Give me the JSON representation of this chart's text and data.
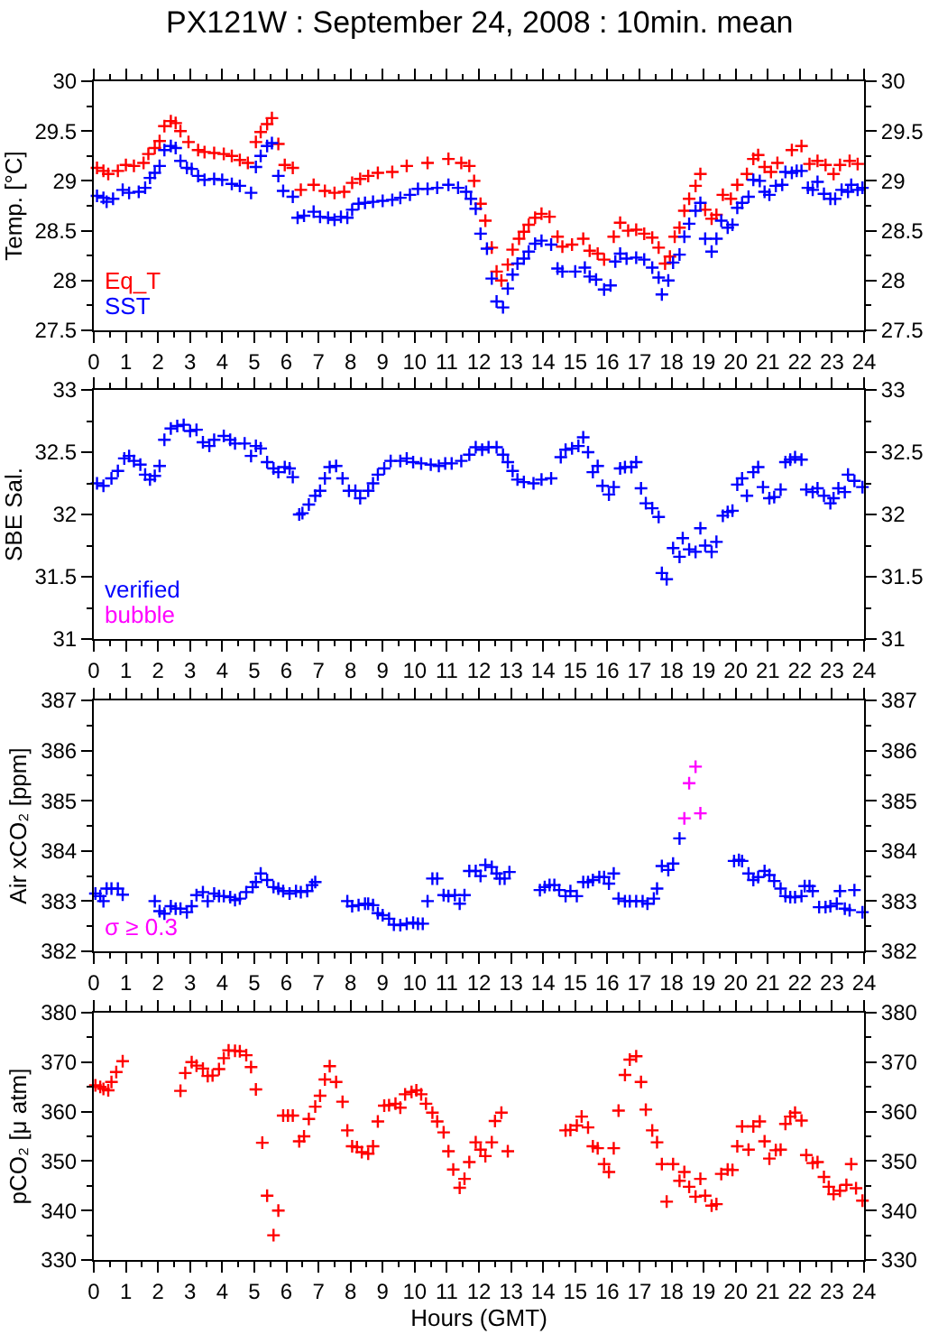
{
  "chart_data": [
    {
      "type": "scatter",
      "title": "PX121W : September 24, 2008 : 10min. mean",
      "ylabel": "Temp. [°C]",
      "marker": "cross",
      "legend": "bottom left",
      "xlim": [
        0,
        24
      ],
      "xticks": [
        0,
        1,
        2,
        3,
        4,
        5,
        6,
        7,
        8,
        9,
        10,
        11,
        12,
        13,
        14,
        15,
        16,
        17,
        18,
        19,
        20,
        21,
        22,
        23,
        24
      ],
      "ylim": [
        27.5,
        30
      ],
      "yticks": [
        27.5,
        28,
        28.5,
        29,
        29.5,
        30
      ],
      "y2lim": [
        27.5,
        30
      ],
      "y2ticks": [
        27.5,
        28,
        28.5,
        29,
        29.5,
        30
      ],
      "series": [
        {
          "name": "Eq_T",
          "color": "#ff0000",
          "x": [
            0.1,
            0.3,
            0.45,
            0.75,
            1.0,
            1.25,
            1.55,
            1.7,
            1.9,
            2.05,
            2.2,
            2.4,
            2.55,
            2.7,
            2.95,
            3.25,
            3.45,
            3.75,
            4.05,
            4.3,
            4.55,
            4.8,
            5.05,
            5.2,
            5.4,
            5.55,
            5.75,
            5.95,
            6.2,
            6.45,
            6.85,
            7.2,
            7.5,
            7.8,
            8.05,
            8.3,
            8.55,
            8.85,
            9.3,
            9.75,
            10.4,
            11.05,
            11.45,
            11.7,
            11.85,
            12.05,
            12.2,
            12.4,
            12.55,
            12.7,
            12.9,
            13.05,
            13.25,
            13.4,
            13.55,
            13.75,
            13.95,
            14.2,
            14.45,
            14.6,
            14.9,
            15.25,
            15.45,
            15.7,
            15.9,
            16.2,
            16.4,
            16.65,
            16.9,
            17.15,
            17.4,
            17.6,
            17.8,
            17.95,
            18.1,
            18.25,
            18.4,
            18.55,
            18.75,
            18.9,
            19.05,
            19.25,
            19.4,
            19.6,
            19.85,
            20.05,
            20.35,
            20.55,
            20.7,
            20.9,
            21.1,
            21.3,
            21.75,
            22.05,
            22.3,
            22.55,
            22.8,
            23.05,
            23.25,
            23.55,
            23.8
          ],
          "values": [
            29.13,
            29.1,
            29.07,
            29.1,
            29.16,
            29.15,
            29.18,
            29.27,
            29.33,
            29.4,
            29.55,
            29.6,
            29.58,
            29.5,
            29.39,
            29.31,
            29.29,
            29.28,
            29.27,
            29.25,
            29.21,
            29.18,
            29.39,
            29.49,
            29.57,
            29.63,
            29.37,
            29.16,
            29.13,
            28.91,
            28.96,
            28.9,
            28.88,
            28.89,
            28.98,
            29.02,
            29.05,
            29.08,
            29.09,
            29.15,
            29.18,
            29.22,
            29.18,
            29.15,
            29.0,
            28.77,
            28.6,
            28.33,
            28.09,
            28.0,
            28.16,
            28.31,
            28.42,
            28.49,
            28.56,
            28.63,
            28.67,
            28.64,
            28.44,
            28.34,
            28.36,
            28.42,
            28.3,
            28.27,
            28.21,
            28.44,
            28.58,
            28.5,
            28.51,
            28.47,
            28.43,
            28.33,
            28.17,
            28.24,
            28.44,
            28.53,
            28.7,
            28.82,
            28.95,
            29.07,
            28.71,
            28.62,
            28.66,
            28.86,
            28.82,
            28.96,
            29.07,
            29.22,
            29.26,
            29.14,
            29.09,
            29.18,
            29.31,
            29.35,
            29.17,
            29.2,
            29.16,
            29.07,
            29.16,
            29.2,
            29.17
          ]
        },
        {
          "name": "SST",
          "color": "#0000ff",
          "x": [
            0.1,
            0.3,
            0.4,
            0.6,
            0.9,
            1.1,
            1.4,
            1.6,
            1.75,
            1.9,
            2.05,
            2.2,
            2.4,
            2.55,
            2.7,
            2.9,
            3.05,
            3.25,
            3.45,
            3.75,
            4.0,
            4.3,
            4.55,
            4.9,
            5.05,
            5.2,
            5.4,
            5.55,
            5.75,
            5.9,
            6.2,
            6.35,
            6.55,
            6.85,
            7.05,
            7.3,
            7.5,
            7.7,
            7.9,
            8.05,
            8.25,
            8.45,
            8.7,
            9.0,
            9.3,
            9.55,
            9.85,
            10.1,
            10.4,
            10.7,
            11.05,
            11.35,
            11.6,
            11.75,
            11.9,
            12.05,
            12.25,
            12.4,
            12.55,
            12.75,
            12.9,
            13.05,
            13.2,
            13.4,
            13.55,
            13.75,
            13.95,
            14.25,
            14.45,
            14.6,
            15.0,
            15.3,
            15.45,
            15.65,
            15.9,
            16.1,
            16.25,
            16.4,
            16.6,
            16.9,
            17.15,
            17.4,
            17.6,
            17.7,
            17.9,
            18.05,
            18.25,
            18.4,
            18.55,
            18.75,
            18.9,
            19.05,
            19.25,
            19.4,
            19.55,
            19.75,
            19.9,
            20.05,
            20.2,
            20.4,
            20.55,
            20.75,
            20.9,
            21.05,
            21.25,
            21.45,
            21.55,
            21.75,
            21.9,
            22.05,
            22.25,
            22.4,
            22.55,
            22.75,
            22.95,
            23.1,
            23.3,
            23.5,
            23.6,
            23.8,
            23.95
          ],
          "values": [
            28.85,
            28.83,
            28.79,
            28.82,
            28.91,
            28.88,
            28.89,
            28.93,
            29.03,
            29.08,
            29.15,
            29.31,
            29.35,
            29.33,
            29.2,
            29.13,
            29.12,
            29.05,
            29.01,
            29.02,
            29.01,
            28.97,
            28.95,
            28.88,
            29.14,
            29.25,
            29.35,
            29.38,
            29.05,
            28.9,
            28.84,
            28.63,
            28.65,
            28.69,
            28.64,
            28.63,
            28.61,
            28.64,
            28.63,
            28.71,
            28.77,
            28.78,
            28.79,
            28.8,
            28.81,
            28.83,
            28.86,
            28.92,
            28.92,
            28.93,
            28.96,
            28.93,
            28.89,
            28.82,
            28.72,
            28.47,
            28.32,
            28.02,
            27.79,
            27.73,
            27.92,
            28.06,
            28.17,
            28.22,
            28.29,
            28.37,
            28.4,
            28.36,
            28.12,
            28.09,
            28.09,
            28.13,
            28.04,
            28.01,
            27.91,
            27.95,
            28.19,
            28.27,
            28.22,
            28.23,
            28.21,
            28.13,
            28.03,
            27.86,
            28.0,
            28.18,
            28.26,
            28.44,
            28.57,
            28.7,
            28.78,
            28.42,
            28.29,
            28.42,
            28.6,
            28.53,
            28.56,
            28.73,
            28.78,
            28.84,
            29.01,
            29.0,
            28.89,
            28.86,
            28.95,
            28.96,
            29.09,
            29.08,
            29.1,
            29.1,
            28.93,
            28.91,
            28.99,
            28.87,
            28.82,
            28.82,
            28.91,
            28.89,
            28.96,
            28.91,
            28.93
          ]
        }
      ]
    },
    {
      "type": "scatter",
      "ylabel": "SBE Sal.",
      "marker": "cross",
      "legend": "bottom left",
      "xlim": [
        0,
        24
      ],
      "xticks": [
        0,
        1,
        2,
        3,
        4,
        5,
        6,
        7,
        8,
        9,
        10,
        11,
        12,
        13,
        14,
        15,
        16,
        17,
        18,
        19,
        20,
        21,
        22,
        23,
        24
      ],
      "ylim": [
        31,
        33
      ],
      "yticks": [
        31,
        31.5,
        32,
        32.5,
        33
      ],
      "y2lim": [
        31,
        33
      ],
      "y2ticks": [
        31,
        31.5,
        32,
        32.5,
        33
      ],
      "series": [
        {
          "name": "verified",
          "color": "#0000ff",
          "x": [
            0.1,
            0.3,
            0.55,
            0.75,
            0.95,
            1.1,
            1.25,
            1.45,
            1.6,
            1.75,
            1.9,
            2.05,
            2.2,
            2.4,
            2.6,
            2.8,
            3.0,
            3.2,
            3.4,
            3.6,
            3.75,
            4.05,
            4.25,
            4.4,
            4.7,
            4.9,
            5.05,
            5.2,
            5.4,
            5.6,
            5.75,
            5.95,
            6.1,
            6.2,
            6.4,
            6.5,
            6.7,
            6.9,
            7.05,
            7.2,
            7.35,
            7.55,
            7.75,
            7.95,
            8.15,
            8.3,
            8.55,
            8.7,
            8.85,
            9.05,
            9.25,
            9.55,
            9.75,
            9.95,
            10.2,
            10.5,
            10.75,
            10.95,
            11.15,
            11.45,
            11.7,
            11.9,
            12.1,
            12.3,
            12.55,
            12.75,
            12.9,
            13.05,
            13.2,
            13.4,
            13.7,
            13.95,
            14.25,
            14.55,
            14.7,
            14.9,
            15.1,
            15.25,
            15.4,
            15.55,
            15.7,
            15.85,
            16.05,
            16.2,
            16.4,
            16.55,
            16.75,
            16.9,
            17.05,
            17.2,
            17.4,
            17.6,
            17.7,
            17.85,
            18.05,
            18.25,
            18.35,
            18.55,
            18.75,
            18.9,
            19.05,
            19.25,
            19.4,
            19.6,
            19.75,
            19.9,
            20.05,
            20.2,
            20.35,
            20.55,
            20.7,
            20.85,
            21.05,
            21.2,
            21.4,
            21.55,
            21.7,
            21.85,
            22.05,
            22.2,
            22.4,
            22.55,
            22.75,
            22.95,
            23.05,
            23.2,
            23.4,
            23.5,
            23.7,
            23.95
          ],
          "values": [
            32.25,
            32.23,
            32.29,
            32.35,
            32.45,
            32.47,
            32.43,
            32.4,
            32.32,
            32.28,
            32.31,
            32.39,
            32.6,
            32.69,
            32.71,
            32.72,
            32.67,
            32.68,
            32.58,
            32.55,
            32.6,
            32.63,
            32.6,
            32.57,
            32.57,
            32.47,
            32.55,
            32.53,
            32.42,
            32.37,
            32.34,
            32.38,
            32.37,
            32.3,
            32.0,
            32.01,
            32.08,
            32.15,
            32.19,
            32.29,
            32.38,
            32.39,
            32.29,
            32.19,
            32.19,
            32.13,
            32.19,
            32.25,
            32.32,
            32.37,
            32.43,
            32.43,
            32.45,
            32.42,
            32.41,
            32.4,
            32.39,
            32.41,
            32.41,
            32.43,
            32.48,
            32.54,
            32.52,
            32.54,
            32.54,
            32.48,
            32.42,
            32.35,
            32.28,
            32.26,
            32.25,
            32.28,
            32.29,
            32.46,
            32.52,
            32.53,
            32.55,
            32.62,
            32.5,
            32.34,
            32.39,
            32.23,
            32.16,
            32.22,
            32.37,
            32.38,
            32.38,
            32.42,
            32.21,
            32.09,
            32.05,
            31.98,
            31.53,
            31.48,
            31.73,
            31.66,
            31.81,
            31.72,
            31.7,
            31.89,
            31.75,
            31.7,
            31.78,
            31.99,
            32.02,
            32.03,
            32.24,
            32.29,
            32.15,
            32.34,
            32.38,
            32.22,
            32.13,
            32.14,
            32.2,
            32.42,
            32.44,
            32.46,
            32.44,
            32.2,
            32.18,
            32.21,
            32.15,
            32.09,
            32.13,
            32.21,
            32.18,
            32.32,
            32.27,
            32.22
          ]
        },
        {
          "name": "bubble",
          "color": "#ff00ff"
        }
      ]
    },
    {
      "type": "scatter",
      "ylabel": "Air xCO₂ [ppm]",
      "marker": "cross",
      "legend": "bottom left",
      "xlim": [
        0,
        24
      ],
      "xticks": [
        0,
        1,
        2,
        3,
        4,
        5,
        6,
        7,
        8,
        9,
        10,
        11,
        12,
        13,
        14,
        15,
        16,
        17,
        18,
        19,
        20,
        21,
        22,
        23,
        24
      ],
      "ylim": [
        382,
        387
      ],
      "yticks": [
        382,
        383,
        384,
        385,
        386,
        387
      ],
      "y2lim": [
        382,
        387
      ],
      "y2ticks": [
        382,
        383,
        384,
        385,
        386,
        387
      ],
      "series": [
        {
          "color": "#0000ff",
          "x": [
            0.05,
            0.2,
            0.3,
            0.4,
            0.55,
            0.75,
            0.9,
            1.9,
            2.05,
            2.2,
            2.4,
            2.55,
            2.7,
            2.9,
            3.05,
            3.2,
            3.4,
            3.55,
            3.75,
            3.9,
            4.05,
            4.25,
            4.4,
            4.55,
            4.75,
            4.95,
            5.05,
            5.2,
            5.4,
            5.6,
            5.75,
            5.9,
            6.1,
            6.3,
            6.45,
            6.65,
            6.8,
            6.9,
            7.9,
            8.05,
            8.25,
            8.45,
            8.55,
            8.7,
            8.85,
            9.0,
            9.2,
            9.35,
            9.55,
            9.75,
            9.95,
            10.1,
            10.25,
            10.4,
            10.55,
            10.7,
            10.9,
            11.05,
            11.25,
            11.4,
            11.55,
            11.7,
            11.9,
            12.05,
            12.2,
            12.4,
            12.55,
            12.65,
            12.8,
            12.95,
            13.9,
            14.05,
            14.2,
            14.35,
            14.5,
            14.7,
            14.85,
            15.05,
            15.25,
            15.4,
            15.55,
            15.75,
            15.9,
            16.05,
            16.2,
            16.35,
            16.55,
            16.7,
            16.9,
            17.1,
            17.25,
            17.45,
            17.55,
            17.7,
            17.9,
            18.05,
            18.25,
            19.95,
            20.1,
            20.2,
            20.4,
            20.55,
            20.7,
            20.9,
            21.05,
            21.2,
            21.4,
            21.55,
            21.7,
            21.85,
            22.05,
            22.15,
            22.3,
            22.4,
            22.6,
            22.8,
            22.95,
            23.15,
            23.25,
            23.4,
            23.55,
            23.7,
            23.95
          ],
          "values": [
            383.15,
            383.1,
            383.0,
            383.25,
            383.25,
            383.25,
            383.13,
            383.0,
            382.8,
            382.75,
            382.9,
            382.85,
            382.85,
            382.78,
            382.9,
            383.12,
            383.18,
            383.0,
            383.15,
            383.1,
            383.1,
            383.08,
            383.02,
            383.05,
            383.18,
            383.28,
            383.38,
            383.55,
            383.42,
            383.28,
            383.25,
            383.2,
            383.15,
            383.2,
            383.18,
            383.2,
            383.32,
            383.38,
            383.0,
            382.9,
            382.92,
            382.95,
            382.95,
            382.92,
            382.76,
            382.72,
            382.65,
            382.53,
            382.52,
            382.55,
            382.57,
            382.55,
            382.55,
            383.0,
            383.45,
            383.45,
            383.12,
            383.1,
            383.12,
            382.95,
            383.12,
            383.6,
            383.6,
            383.5,
            383.72,
            383.68,
            383.55,
            383.45,
            383.45,
            383.58,
            383.22,
            383.28,
            383.32,
            383.32,
            383.22,
            383.1,
            383.2,
            383.1,
            383.38,
            383.38,
            383.42,
            383.48,
            383.48,
            383.35,
            383.55,
            383.05,
            383.0,
            383.0,
            383.0,
            383.0,
            382.95,
            383.05,
            383.25,
            383.7,
            383.62,
            383.75,
            384.25,
            383.8,
            383.82,
            383.8,
            383.55,
            383.42,
            383.48,
            383.6,
            383.52,
            383.4,
            383.25,
            383.1,
            383.08,
            383.08,
            383.1,
            383.3,
            383.3,
            383.2,
            382.88,
            382.88,
            382.9,
            382.95,
            383.2,
            382.85,
            382.82,
            383.22,
            382.78
          ]
        },
        {
          "name": "σ ≥ 0.3",
          "color": "#ff00ff",
          "x": [
            18.4,
            18.55,
            18.75,
            18.9
          ],
          "values": [
            384.65,
            385.35,
            385.68,
            384.75
          ]
        }
      ]
    },
    {
      "type": "scatter",
      "ylabel": "pCO₂ [μ atm]",
      "xlabel": "Hours (GMT)",
      "marker": "cross",
      "xlim": [
        0,
        24
      ],
      "xticks": [
        0,
        1,
        2,
        3,
        4,
        5,
        6,
        7,
        8,
        9,
        10,
        11,
        12,
        13,
        14,
        15,
        16,
        17,
        18,
        19,
        20,
        21,
        22,
        23,
        24
      ],
      "ylim": [
        330,
        380
      ],
      "yticks": [
        330,
        340,
        350,
        360,
        370,
        380
      ],
      "y2lim": [
        330,
        380
      ],
      "y2ticks": [
        330,
        340,
        350,
        360,
        370,
        380
      ],
      "series": [
        {
          "color": "#ff0000",
          "x": [
            0.05,
            0.2,
            0.3,
            0.45,
            0.55,
            0.7,
            0.9,
            2.7,
            2.85,
            3.05,
            3.2,
            3.4,
            3.55,
            3.7,
            3.9,
            4.05,
            4.2,
            4.4,
            4.55,
            4.75,
            4.9,
            5.05,
            5.25,
            5.4,
            5.6,
            5.75,
            5.9,
            6.05,
            6.2,
            6.4,
            6.55,
            6.7,
            6.9,
            7.05,
            7.2,
            7.35,
            7.55,
            7.75,
            7.9,
            8.05,
            8.2,
            8.35,
            8.55,
            8.7,
            8.85,
            9.05,
            9.2,
            9.4,
            9.55,
            9.7,
            9.9,
            10.05,
            10.2,
            10.35,
            10.55,
            10.7,
            10.9,
            11.05,
            11.2,
            11.4,
            11.55,
            11.7,
            11.9,
            12.05,
            12.2,
            12.4,
            12.5,
            12.7,
            12.9,
            14.7,
            14.85,
            15.05,
            15.2,
            15.4,
            15.55,
            15.7,
            15.9,
            16.05,
            16.2,
            16.35,
            16.55,
            16.7,
            16.9,
            17.05,
            17.2,
            17.4,
            17.55,
            17.7,
            17.85,
            18.05,
            18.25,
            18.4,
            18.55,
            18.75,
            18.9,
            19.05,
            19.25,
            19.4,
            19.55,
            19.75,
            19.9,
            20.05,
            20.2,
            20.4,
            20.55,
            20.75,
            20.9,
            21.05,
            21.25,
            21.4,
            21.55,
            21.7,
            21.85,
            22.05,
            22.2,
            22.4,
            22.55,
            22.75,
            22.9,
            23.05,
            23.25,
            23.45,
            23.6,
            23.75,
            23.95
          ],
          "values": [
            365.3,
            365.0,
            364.6,
            364.3,
            366.0,
            368.0,
            370.2,
            364.2,
            367.8,
            370.0,
            369.3,
            368.7,
            367.2,
            367.3,
            368.6,
            370.8,
            372.4,
            372.3,
            372.2,
            371.4,
            369.0,
            364.5,
            353.7,
            343.0,
            335.0,
            340.0,
            359.2,
            359.2,
            359.2,
            354.0,
            355.0,
            358.5,
            361.0,
            363.2,
            366.5,
            369.2,
            366.0,
            362.0,
            356.2,
            353.0,
            352.8,
            351.8,
            351.5,
            353.0,
            358.0,
            361.2,
            361.3,
            361.6,
            360.8,
            363.5,
            364.0,
            364.3,
            363.5,
            361.6,
            359.8,
            358.0,
            355.8,
            352.0,
            348.3,
            344.6,
            346.4,
            349.8,
            353.8,
            352.3,
            351.0,
            353.8,
            358.1,
            359.8,
            352.0,
            356.2,
            356.3,
            357.2,
            359.0,
            356.8,
            353.0,
            352.6,
            349.4,
            347.8,
            352.6,
            360.2,
            367.4,
            370.5,
            371.2,
            366.0,
            360.4,
            356.2,
            353.8,
            349.4,
            341.8,
            349.4,
            346.0,
            347.8,
            344.8,
            342.8,
            346.4,
            343.0,
            341.0,
            341.3,
            347.4,
            348.3,
            348.2,
            353.0,
            357.0,
            352.3,
            357.0,
            358.0,
            354.0,
            350.5,
            352.2,
            352.3,
            357.5,
            359.0,
            359.8,
            358.2,
            351.2,
            349.6,
            349.8,
            346.8,
            344.8,
            343.3,
            344.0,
            345.2,
            349.4,
            344.5,
            342.0
          ]
        }
      ]
    }
  ]
}
